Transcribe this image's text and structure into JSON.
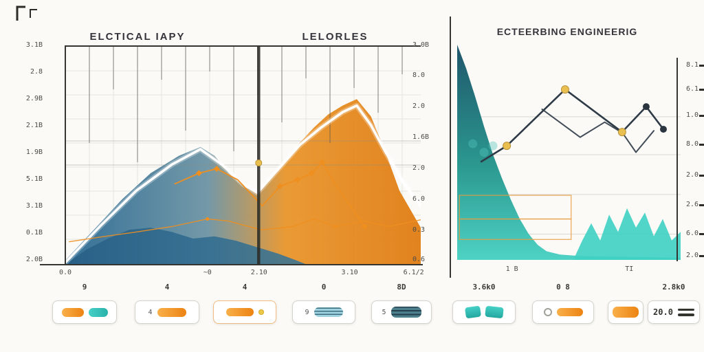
{
  "accent": {
    "orange": "#ee8f1f",
    "orange_light": "#f8ab42",
    "teal": "#35c2ba",
    "teal_dark": "#23717f",
    "navy": "#2e3a46",
    "gold": "#e9c050",
    "blue": "#2c6c94",
    "white_line": "#ffffff"
  },
  "left_chart": {
    "title_left": "ELCTICAL IAPY",
    "title_right": "LELORLES",
    "y_labels_left": [
      "3.1B",
      "2.8",
      "2.9B",
      "2.1B",
      "1.9B",
      "5.1B",
      "3.1B",
      "0.1B",
      "2.0B"
    ],
    "y_labels_inner_right": [
      "3.0B",
      "8.0",
      "2.0",
      "1.6B",
      "2.0",
      "6.0",
      "0.3",
      "0.6"
    ],
    "x_labels": [
      {
        "text": "0.0",
        "pct": 0
      },
      {
        "text": "~0",
        "pct": 40
      },
      {
        "text": "2.10",
        "pct": 54.5
      },
      {
        "text": "3.10",
        "pct": 80
      },
      {
        "text": "6.1/2",
        "pct": 98
      }
    ]
  },
  "right_chart": {
    "title": "ECTEERBING ENGINEERIG",
    "y_labels_right": [
      "8.1",
      "6.1",
      "1.0",
      "8.0",
      "2.0",
      "2.6",
      "6.0",
      "2.0"
    ],
    "x_labels": [
      {
        "text": "1 B",
        "pct": 24.5
      },
      {
        "text": "TI",
        "pct": 77
      }
    ]
  },
  "chart_data": [
    {
      "type": "area",
      "panel": "left",
      "title": "ELCTICAL IAPY / LELORLES",
      "xlabel": "",
      "ylabel": "",
      "x_range": [
        0,
        100
      ],
      "y_range": [
        0,
        100
      ],
      "grid": true,
      "legend": "none",
      "series": [
        {
          "name": "gradient-mountain-area",
          "kind": "area",
          "points": [
            [
              0,
              2
            ],
            [
              8,
              16
            ],
            [
              16,
              30
            ],
            [
              24,
              42
            ],
            [
              32,
              50
            ],
            [
              38,
              54
            ],
            [
              42,
              50
            ],
            [
              46,
              42
            ],
            [
              50,
              36
            ],
            [
              54,
              33
            ],
            [
              58,
              40
            ],
            [
              62,
              48
            ],
            [
              66,
              56
            ],
            [
              70,
              63
            ],
            [
              74,
              69
            ],
            [
              78,
              73
            ],
            [
              82,
              76
            ],
            [
              86,
              68
            ],
            [
              90,
              52
            ],
            [
              94,
              34
            ],
            [
              100,
              17
            ]
          ]
        },
        {
          "name": "front-ridge-area",
          "kind": "area",
          "points": [
            [
              0,
              0
            ],
            [
              6,
              7
            ],
            [
              12,
              12
            ],
            [
              18,
              16
            ],
            [
              24,
              17
            ],
            [
              30,
              15
            ],
            [
              36,
              12
            ],
            [
              42,
              13
            ],
            [
              48,
              11
            ],
            [
              54,
              8
            ],
            [
              60,
              5
            ],
            [
              65,
              2
            ],
            [
              68,
              0
            ]
          ]
        },
        {
          "name": "white-trend-line",
          "kind": "line",
          "points": [
            [
              0,
              1
            ],
            [
              10,
              18
            ],
            [
              20,
              34
            ],
            [
              30,
              46
            ],
            [
              38,
              53
            ],
            [
              44,
              46
            ],
            [
              50,
              37
            ],
            [
              54,
              33
            ],
            [
              60,
              44
            ],
            [
              66,
              55
            ],
            [
              72,
              63
            ],
            [
              78,
              70
            ],
            [
              82,
              73
            ],
            [
              86,
              64
            ],
            [
              90,
              52
            ],
            [
              95,
              38
            ],
            [
              100,
              27
            ]
          ]
        },
        {
          "name": "orange-marker-line",
          "kind": "line",
          "points": [
            [
              30.7,
              37
            ],
            [
              37.6,
              42
            ],
            [
              42.6,
              44
            ],
            [
              48.5,
              39
            ],
            [
              55.4,
              27
            ],
            [
              60.4,
              36
            ],
            [
              65.3,
              39
            ],
            [
              69.3,
              42
            ],
            [
              72.3,
              47
            ],
            [
              75.2,
              39
            ],
            [
              80.2,
              27
            ],
            [
              84.2,
              17.5
            ]
          ],
          "markers": [
            [
              37.6,
              42
            ],
            [
              42.6,
              44
            ],
            [
              60.4,
              36
            ],
            [
              65.3,
              39
            ],
            [
              69.3,
              42
            ],
            [
              72.3,
              47
            ],
            [
              84.2,
              17.5
            ]
          ]
        },
        {
          "name": "orange-low-line",
          "kind": "line",
          "points": [
            [
              1,
              10.5
            ],
            [
              10,
              12.7
            ],
            [
              20,
              15
            ],
            [
              30,
              17.5
            ],
            [
              40,
              21
            ],
            [
              46,
              20
            ],
            [
              55,
              16
            ],
            [
              64,
              17.5
            ],
            [
              70,
              21
            ],
            [
              76,
              17.5
            ],
            [
              84,
              20
            ],
            [
              91,
              17.5
            ],
            [
              100,
              20.6
            ]
          ],
          "markers": [
            [
              40,
              21
            ],
            [
              76,
              17.5
            ]
          ]
        }
      ],
      "annotations": {
        "vline_x": 54.4,
        "gold_dot": [
          54.4,
          46.7
        ]
      }
    },
    {
      "type": "area",
      "panel": "right",
      "title": "ECTEERBING ENGINEERIG",
      "xlabel": "",
      "ylabel": "",
      "x_range": [
        0,
        100
      ],
      "y_range": [
        0,
        100
      ],
      "gridlines_y": [
        12,
        30.4,
        48.9,
        66.5
      ],
      "legend": "none",
      "series": [
        {
          "name": "teal-decay-area",
          "kind": "area",
          "points": [
            [
              0,
              100
            ],
            [
              4,
              89
            ],
            [
              8,
              76
            ],
            [
              12,
              62
            ],
            [
              16,
              49
            ],
            [
              20,
              38
            ],
            [
              24,
              28
            ],
            [
              28,
              19
            ],
            [
              32,
              12
            ],
            [
              36,
              7
            ],
            [
              40,
              4
            ],
            [
              46,
              2.5
            ],
            [
              55,
              1.8
            ],
            [
              100,
              1
            ]
          ]
        },
        {
          "name": "teal-jagged-area",
          "kind": "area",
          "points": [
            [
              52,
              0
            ],
            [
              56,
              9
            ],
            [
              60,
              17
            ],
            [
              64,
              9
            ],
            [
              68,
              21
            ],
            [
              72,
              13
            ],
            [
              76,
              24
            ],
            [
              80,
              15
            ],
            [
              84,
              22
            ],
            [
              88,
              11
            ],
            [
              92,
              19
            ],
            [
              96,
              9
            ],
            [
              100,
              13
            ]
          ]
        },
        {
          "name": "navy-second-line",
          "kind": "line",
          "points": [
            [
              38,
              70
            ],
            [
              55,
              57
            ],
            [
              66,
              64
            ],
            [
              74,
              59
            ],
            [
              80,
              50
            ],
            [
              88,
              60
            ]
          ]
        },
        {
          "name": "navy-dot-line",
          "kind": "line",
          "points": [
            [
              10.8,
              45.7
            ],
            [
              22.2,
              53
            ],
            [
              48.3,
              79.2
            ],
            [
              73.8,
              59.4
            ],
            [
              84.6,
              71.2
            ],
            [
              92.3,
              60.7
            ]
          ],
          "markers_gold": [
            [
              22.2,
              53
            ],
            [
              48.3,
              79.2
            ],
            [
              73.8,
              59.4
            ]
          ],
          "markers_dark": [
            [
              84.6,
              71.2
            ],
            [
              92.3,
              60.7
            ]
          ]
        },
        {
          "name": "faded-dots",
          "kind": "dots",
          "points": [
            [
              7,
              54
            ],
            [
              12,
              50
            ],
            [
              16,
              53
            ]
          ]
        }
      ],
      "orange_boxes": [
        {
          "x": 1,
          "y": 19,
          "w": 50,
          "h": 11
        },
        {
          "x": 1,
          "y": 9.5,
          "w": 50,
          "h": 9.5
        }
      ]
    }
  ],
  "chips": [
    {
      "label": "9",
      "variant": "dual-pill"
    },
    {
      "label": "4",
      "variant": "text-pill",
      "text": "4"
    },
    {
      "label": "4",
      "variant": "pill-dot"
    },
    {
      "label": "0",
      "variant": "text-stripe",
      "text": "9"
    },
    {
      "label": "8D",
      "variant": "text-darkstripe",
      "text": "5"
    },
    {
      "label": "3.6k0",
      "variant": "blobs"
    },
    {
      "label": "0 8",
      "variant": "icon-pill"
    },
    {
      "label": "",
      "variant": "solid-pill"
    },
    {
      "label": "2.8k0",
      "variant": "value-box",
      "text": "20.0"
    }
  ]
}
